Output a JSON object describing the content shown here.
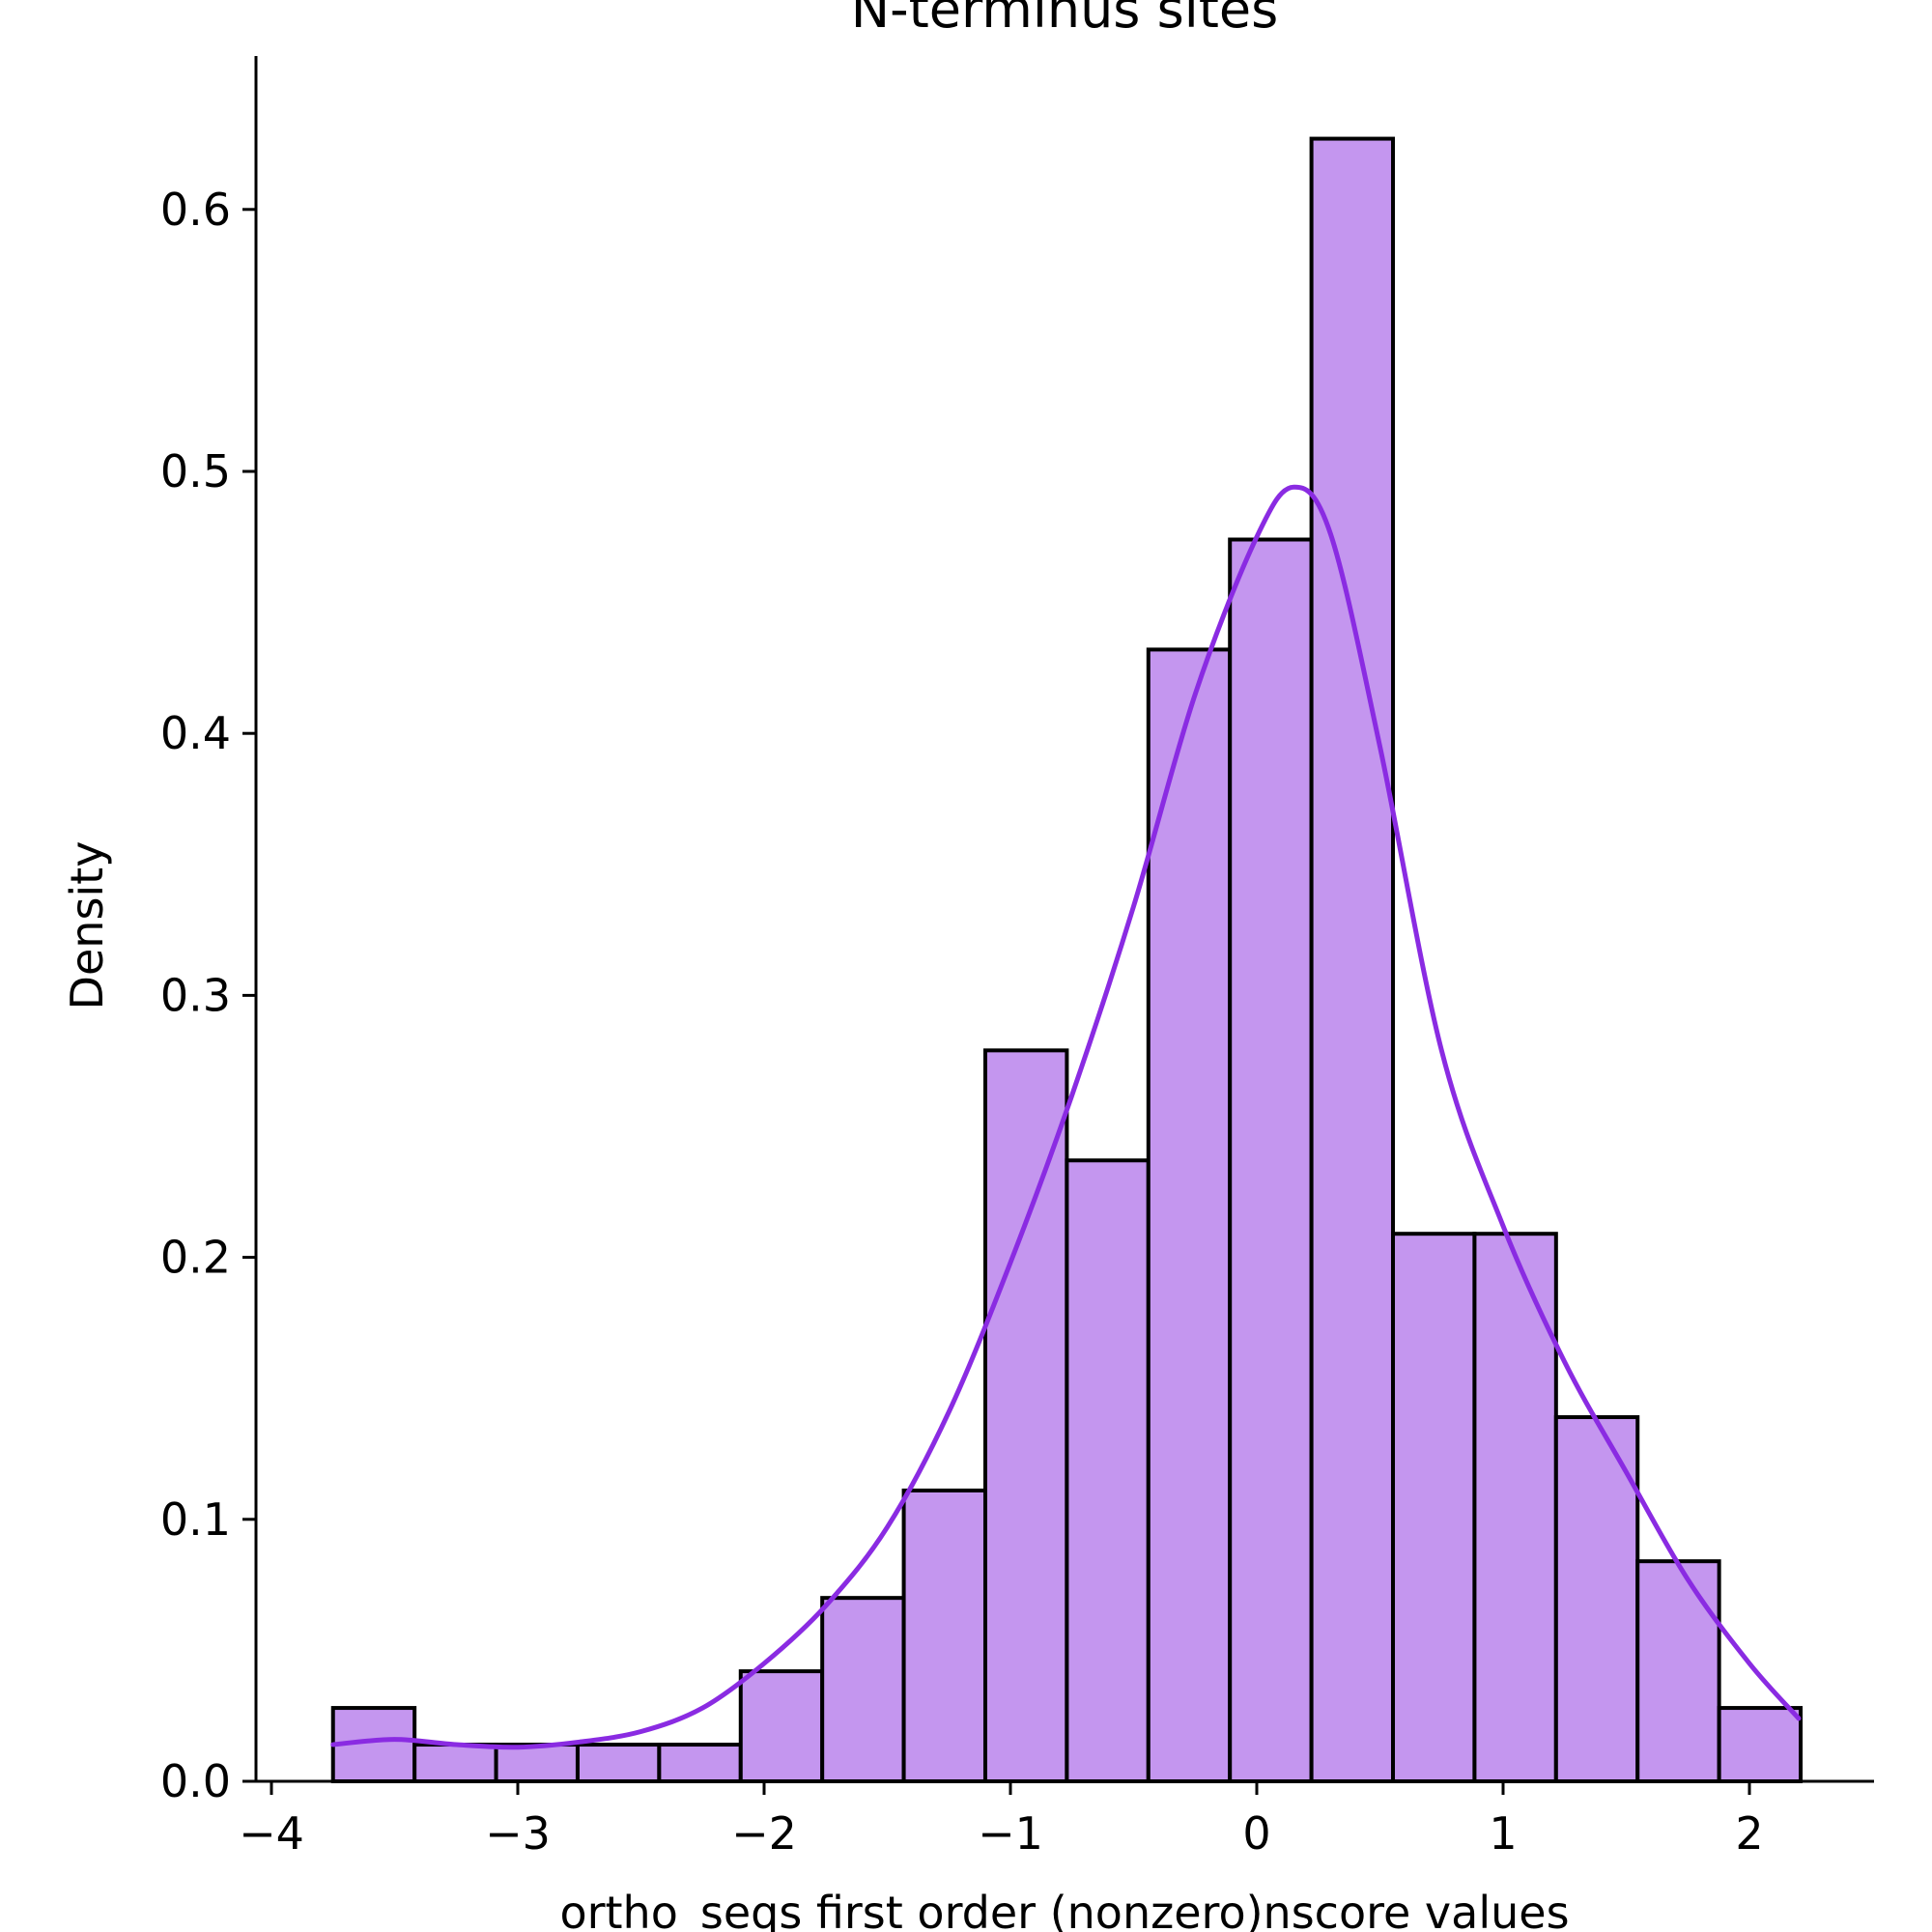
{
  "chart_data": {
    "type": "histogram",
    "title": "N-terminus sites",
    "xlabel": "ortho_seqs first order (nonzero)nscore values",
    "ylabel": "Density",
    "xlim": [
      -4.05,
      2.5
    ],
    "ylim": [
      0,
      0.66
    ],
    "xticks": [
      -4,
      -3,
      -2,
      -1,
      0,
      1,
      2
    ],
    "xtick_labels": [
      "−4",
      "−3",
      "−2",
      "−1",
      "0",
      "1",
      "2"
    ],
    "yticks": [
      0.0,
      0.1,
      0.2,
      0.3,
      0.4,
      0.5,
      0.6
    ],
    "ytick_labels": [
      "0.0",
      "0.1",
      "0.2",
      "0.3",
      "0.4",
      "0.5",
      "0.6"
    ],
    "bin_start": -3.75,
    "bin_width": 0.331,
    "values": [
      0.028,
      0.014,
      0.014,
      0.014,
      0.014,
      0.042,
      0.07,
      0.111,
      0.279,
      0.237,
      0.432,
      0.474,
      0.627,
      0.209,
      0.209,
      0.139,
      0.084,
      0.028
    ],
    "kde": {
      "x": [
        -3.75,
        -3.5,
        -3.25,
        -3.0,
        -2.75,
        -2.5,
        -2.25,
        -2.0,
        -1.75,
        -1.5,
        -1.25,
        -1.0,
        -0.75,
        -0.5,
        -0.25,
        0.0,
        0.15,
        0.3,
        0.5,
        0.75,
        1.0,
        1.25,
        1.5,
        1.75,
        2.0,
        2.2
      ],
      "y": [
        0.014,
        0.016,
        0.014,
        0.013,
        0.015,
        0.019,
        0.028,
        0.045,
        0.067,
        0.097,
        0.141,
        0.198,
        0.262,
        0.334,
        0.415,
        0.475,
        0.494,
        0.476,
        0.395,
        0.279,
        0.212,
        0.16,
        0.118,
        0.077,
        0.045,
        0.024
      ]
    },
    "grid": false,
    "legend": "none",
    "colors": {
      "bar_fill": "#c496ef",
      "bar_edge": "#000000",
      "kde_line": "#8a2be2"
    }
  }
}
